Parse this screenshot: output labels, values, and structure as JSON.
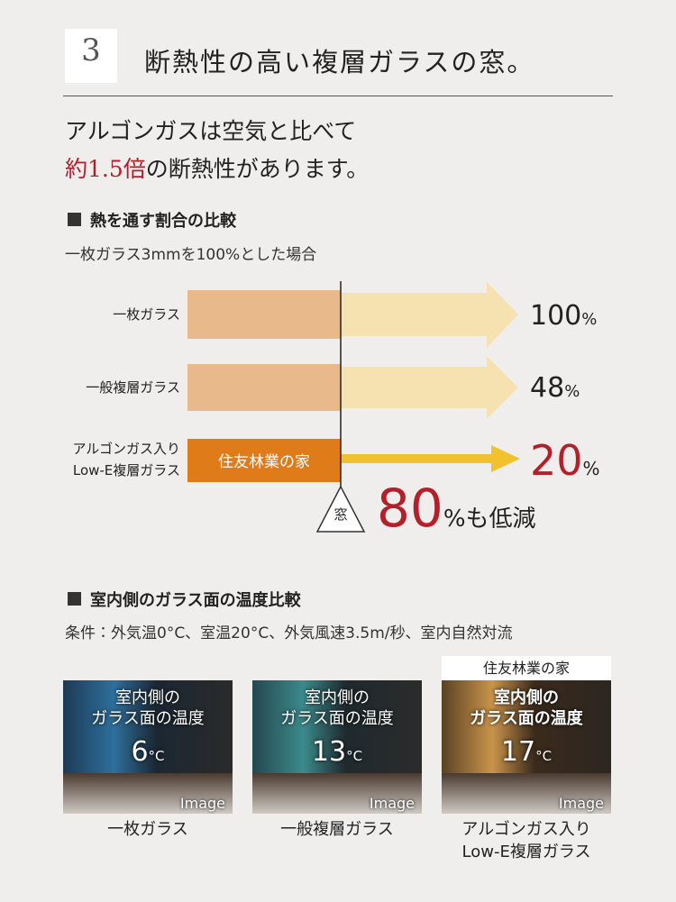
{
  "header": {
    "number": "3",
    "title": "断熱性の高い複層ガラスの窓。"
  },
  "lead": {
    "line1": "アルゴンガスは空気と比べて",
    "highlight": "約1.5倍",
    "line2": "の断熱性があります。"
  },
  "heat_section": {
    "title": "熱を通す割合の比較",
    "note": "一枚ガラス3mmを100%とした場合",
    "rows": [
      {
        "label": [
          "一枚ガラス"
        ],
        "value": "100",
        "unit": "%"
      },
      {
        "label": [
          "一般複層ガラス"
        ],
        "value": "48",
        "unit": "%"
      },
      {
        "label": [
          "アルゴンガス入り",
          "Low-E複層ガラス"
        ],
        "badge": "住友林業の家",
        "value": "20",
        "unit": "%"
      }
    ],
    "window_label": "窓",
    "reduction": {
      "value": "80",
      "unit": "%",
      "text": "も低減"
    }
  },
  "temp_section": {
    "title": "室内側のガラス面の温度比較",
    "conditions": "条件：外気温0°C、室温20°C、外気風速3.5m/秒、室内自然対流",
    "panels": [
      {
        "overlay": [
          "室内側の",
          "ガラス面の温度"
        ],
        "value": "6",
        "unit": "°C",
        "tag": "Image",
        "caption": [
          "一枚ガラス"
        ]
      },
      {
        "overlay": [
          "室内側の",
          "ガラス面の温度"
        ],
        "value": "13",
        "unit": "°C",
        "tag": "Image",
        "caption": [
          "一般複層ガラス"
        ]
      },
      {
        "badge": "住友林業の家",
        "overlay": [
          "室内側の",
          "ガラス面の温度"
        ],
        "value": "17",
        "unit": "°C",
        "tag": "Image",
        "caption": [
          "アルゴンガス入り",
          "Low-E複層ガラス"
        ]
      }
    ]
  }
}
